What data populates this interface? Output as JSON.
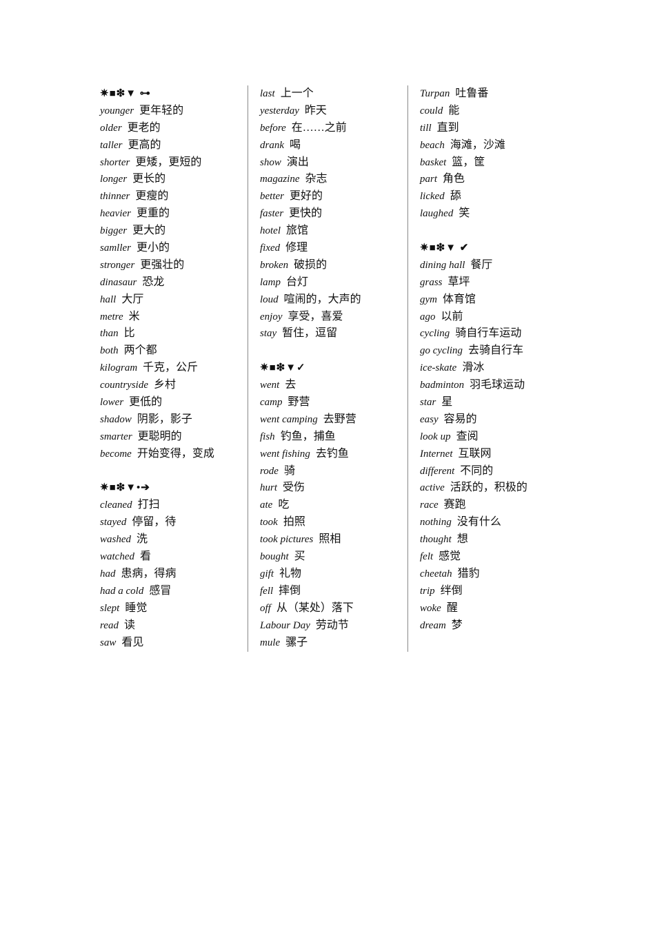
{
  "columns": [
    [
      {
        "header": "✷■❇▼ ⊶"
      },
      {
        "en": "younger",
        "zh": "更年轻的"
      },
      {
        "en": "older",
        "zh": "更老的"
      },
      {
        "en": "taller",
        "zh": "更高的"
      },
      {
        "en": "shorter",
        "zh": "更矮，更短的"
      },
      {
        "en": "longer",
        "zh": "更长的"
      },
      {
        "en": "thinner",
        "zh": "更瘦的"
      },
      {
        "en": "heavier",
        "zh": "更重的"
      },
      {
        "en": "bigger",
        "zh": "更大的"
      },
      {
        "en": "samller",
        "zh": "更小的"
      },
      {
        "en": "stronger",
        "zh": "更强壮的"
      },
      {
        "en": "dinasaur",
        "zh": "恐龙"
      },
      {
        "en": "hall",
        "zh": "大厅"
      },
      {
        "en": "metre",
        "zh": "米"
      },
      {
        "en": "than",
        "zh": "比"
      },
      {
        "en": "both",
        "zh": "两个都"
      },
      {
        "en": "kilogram",
        "zh": "千克，公斤"
      },
      {
        "en": "countryside",
        "zh": "乡村"
      },
      {
        "en": "lower",
        "zh": "更低的"
      },
      {
        "en": "shadow",
        "zh": "阴影，影子"
      },
      {
        "en": "smarter",
        "zh": "更聪明的"
      },
      {
        "en": "become",
        "zh": "开始变得，变成"
      },
      {},
      {
        "header": "✷■❇▼•➔"
      },
      {
        "en": "cleaned",
        "zh": "打扫"
      },
      {
        "en": "stayed",
        "zh": "停留，待"
      },
      {
        "en": "washed",
        "zh": "洗"
      },
      {
        "en": "watched",
        "zh": "看"
      },
      {
        "en": "had",
        "zh": "患病，得病"
      },
      {
        "en": "had a cold",
        "zh": "感冒"
      },
      {
        "en": "slept",
        "zh": "睡觉"
      },
      {
        "en": "read",
        "zh": "读"
      },
      {
        "en": "saw",
        "zh": "看见"
      }
    ],
    [
      {
        "en": "last",
        "zh": "上一个"
      },
      {
        "en": "yesterday",
        "zh": "昨天"
      },
      {
        "en": "before",
        "zh": "在……之前"
      },
      {
        "en": "drank",
        "zh": "喝"
      },
      {
        "en": "show",
        "zh": "演出"
      },
      {
        "en": "magazine",
        "zh": "杂志"
      },
      {
        "en": "better",
        "zh": "更好的"
      },
      {
        "en": "faster",
        "zh": "更快的"
      },
      {
        "en": "hotel",
        "zh": "旅馆"
      },
      {
        "en": "fixed",
        "zh": "修理"
      },
      {
        "en": "broken",
        "zh": "破损的"
      },
      {
        "en": "lamp",
        "zh": "台灯"
      },
      {
        "en": "loud",
        "zh": "喧闹的，大声的"
      },
      {
        "en": "enjoy",
        "zh": "享受，喜爱"
      },
      {
        "en": "stay",
        "zh": "暂住，逗留"
      },
      {},
      {
        "header": "✷■❇▼✓"
      },
      {
        "en": "went",
        "zh": "去"
      },
      {
        "en": "camp",
        "zh": "野营"
      },
      {
        "en": "went camping",
        "zh": "去野营"
      },
      {
        "en": "fish",
        "zh": "钓鱼，捕鱼"
      },
      {
        "en": "went fishing",
        "zh": "去钓鱼"
      },
      {
        "en": "rode",
        "zh": "骑"
      },
      {
        "en": "hurt",
        "zh": "受伤"
      },
      {
        "en": "ate",
        "zh": "吃"
      },
      {
        "en": "took",
        "zh": "拍照"
      },
      {
        "en": "took pictures",
        "zh": "照相"
      },
      {
        "en": "bought",
        "zh": "买"
      },
      {
        "en": "gift",
        "zh": "礼物"
      },
      {
        "en": "fell",
        "zh": "摔倒"
      },
      {
        "en": "off",
        "zh": "从（某处）落下"
      },
      {
        "en": "Labour Day",
        "zh": "劳动节"
      },
      {
        "en": "mule",
        "zh": "骡子"
      }
    ],
    [
      {
        "en": "Turpan",
        "zh": "吐鲁番"
      },
      {
        "en": "could",
        "zh": "能"
      },
      {
        "en": "till",
        "zh": "直到"
      },
      {
        "en": "beach",
        "zh": "海滩，沙滩"
      },
      {
        "en": "basket",
        "zh": "篮，筐"
      },
      {
        "en": "part",
        "zh": "角色"
      },
      {
        "en": "licked",
        "zh": "舔"
      },
      {
        "en": "laughed",
        "zh": "笑"
      },
      {},
      {
        "header": "✷■❇▼ ✔"
      },
      {
        "en": "dining hall",
        "zh": "餐厅"
      },
      {
        "en": "grass",
        "zh": "草坪"
      },
      {
        "en": "gym",
        "zh": "体育馆"
      },
      {
        "en": "ago",
        "zh": "以前"
      },
      {
        "en": "cycling",
        "zh": "骑自行车运动"
      },
      {
        "en": "go cycling",
        "zh": "去骑自行车"
      },
      {
        "en": "ice-skate",
        "zh": "滑冰"
      },
      {
        "en": "badminton",
        "zh": "羽毛球运动"
      },
      {
        "en": "star",
        "zh": "星"
      },
      {
        "en": "easy",
        "zh": "容易的"
      },
      {
        "en": "look up",
        "zh": "查阅"
      },
      {
        "en": "Internet",
        "zh": "互联网"
      },
      {
        "en": "different",
        "zh": "不同的"
      },
      {
        "en": "active",
        "zh": "活跃的，积极的"
      },
      {
        "en": "race",
        "zh": "赛跑"
      },
      {
        "en": "nothing",
        "zh": "没有什么"
      },
      {
        "en": "thought",
        "zh": "想"
      },
      {
        "en": "felt",
        "zh": "感觉"
      },
      {
        "en": "cheetah",
        "zh": "猎豹"
      },
      {
        "en": "trip",
        "zh": "绊倒"
      },
      {
        "en": "woke",
        "zh": "醒"
      },
      {
        "en": "dream",
        "zh": "梦"
      }
    ]
  ]
}
